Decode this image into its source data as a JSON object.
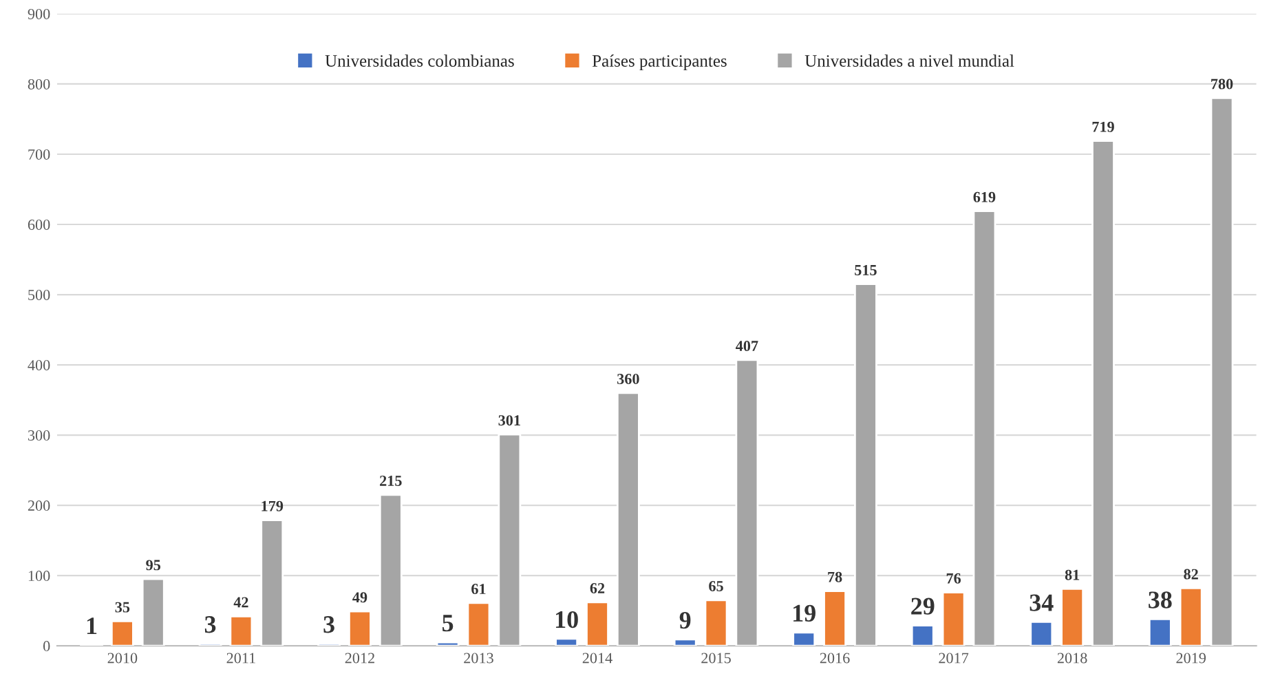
{
  "chart_data": {
    "type": "bar",
    "categories": [
      "2010",
      "2011",
      "2012",
      "2013",
      "2014",
      "2015",
      "2016",
      "2017",
      "2018",
      "2019"
    ],
    "series": [
      {
        "name": "Universidades colombianas",
        "color": "#4472c4",
        "values": [
          1,
          3,
          3,
          5,
          10,
          9,
          19,
          29,
          34,
          38
        ]
      },
      {
        "name": "Países participantes",
        "color": "#ed7d31",
        "values": [
          35,
          42,
          49,
          61,
          62,
          65,
          78,
          76,
          81,
          82
        ]
      },
      {
        "name": "Universidades a nivel mundial",
        "color": "#a5a5a5",
        "values": [
          95,
          179,
          215,
          301,
          360,
          407,
          515,
          619,
          719,
          780
        ]
      }
    ],
    "ylim": [
      0,
      900
    ],
    "yticks": [
      0,
      100,
      200,
      300,
      400,
      500,
      600,
      700,
      800,
      900
    ],
    "grid": "y",
    "legend": "top",
    "data_labels": true
  }
}
